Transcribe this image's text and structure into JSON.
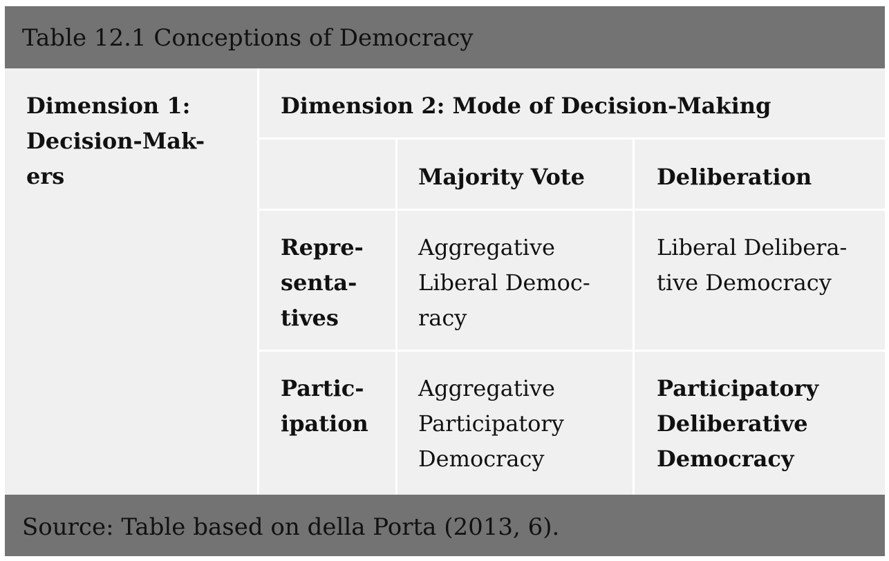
{
  "caption": "Table 12.1 Conceptions of Democracy",
  "source_note": "Source: Table based on della Porta (2013, 6).",
  "table": {
    "dimension1": [
      "Dimension 1:",
      "Decision-Mak-",
      "ers"
    ],
    "dimension2": "Dimension 2: Mode of Decision-Making",
    "columns": [
      "Majority Vote",
      "Deliberation"
    ],
    "rows": [
      {
        "label": [
          "Repre-",
          "senta-",
          "tives"
        ],
        "cells": [
          [
            "Aggregative",
            "Liberal Democ-",
            "racy"
          ],
          [
            "Liberal Delibera-",
            "tive Democracy"
          ]
        ]
      },
      {
        "label": [
          "Partic-",
          "ipation"
        ],
        "cells": [
          [
            "Aggregative",
            "Participatory",
            "Democracy"
          ],
          [
            "Participatory",
            "Deliberative",
            "Democracy"
          ]
        ]
      }
    ]
  }
}
